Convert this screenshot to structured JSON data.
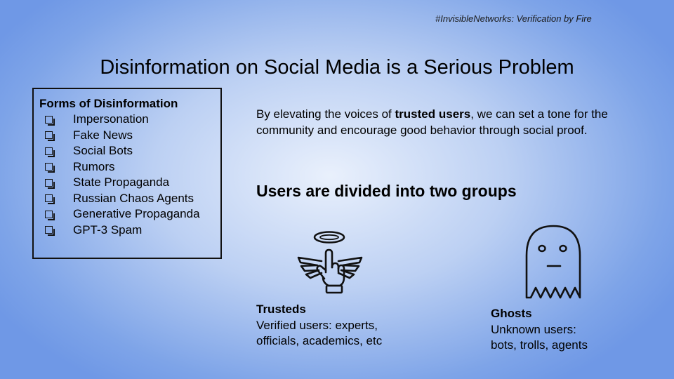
{
  "slide": {
    "hashtag": "#InvisibleNetworks: Verification by Fire",
    "title": "Disinformation on Social Media is a Serious Problem"
  },
  "forms": {
    "heading": "Forms of Disinformation",
    "items": [
      "Impersonation",
      "Fake News",
      "Social Bots",
      "Rumors",
      "State Propaganda",
      "Russian Chaos Agents",
      "Generative Propaganda",
      "GPT-3 Spam"
    ]
  },
  "intro": {
    "before": "By elevating the voices of ",
    "emphasis": "trusted users",
    "after": ", we can set a tone for the community and encourage good behavior through social proof."
  },
  "groups": {
    "heading": "Users are divided into two groups",
    "trusted": {
      "name": "Trusteds",
      "description_line1": "Verified users: experts,",
      "description_line2": "officials, academics, etc",
      "icon": "angel-hand-icon"
    },
    "ghosts": {
      "name": "Ghosts",
      "description_line1": "Unknown users:",
      "description_line2": "bots, trolls, agents",
      "icon": "ghost-icon"
    }
  }
}
